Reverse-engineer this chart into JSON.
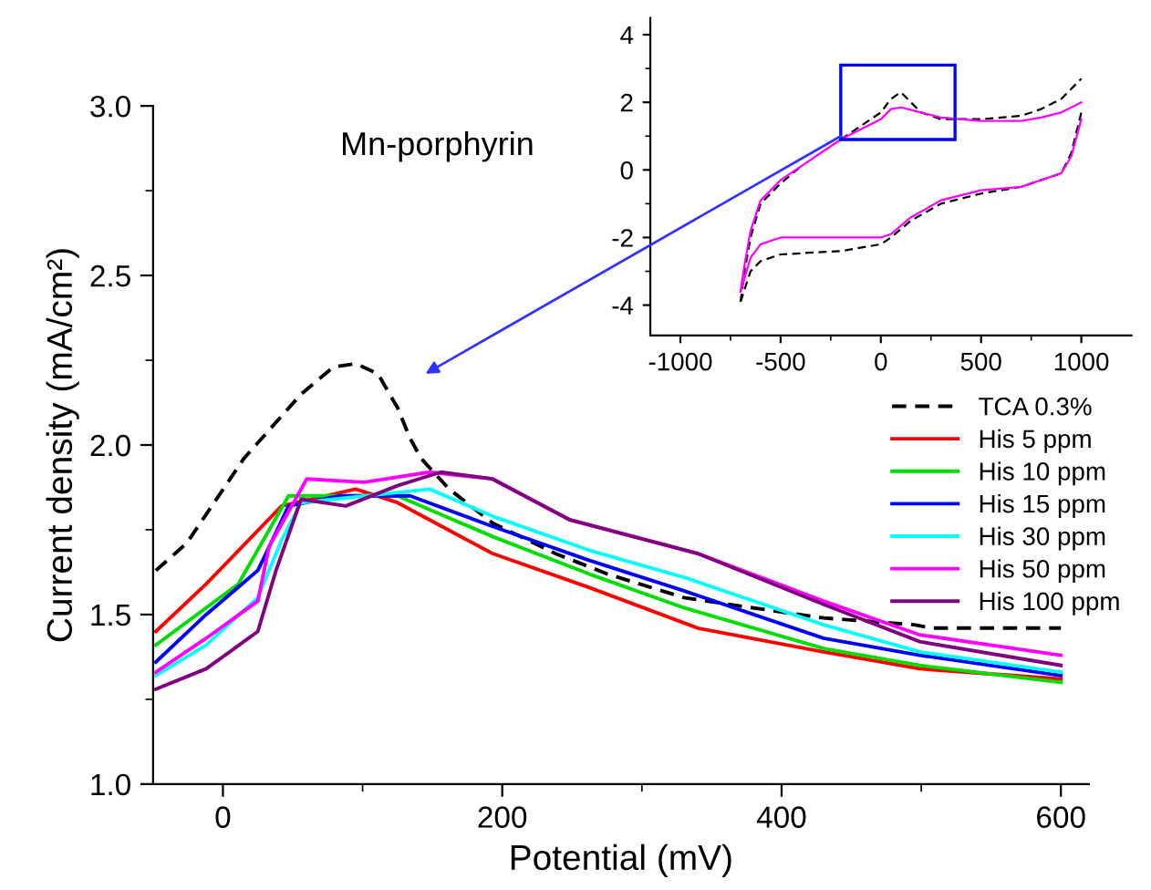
{
  "chart_data": [
    {
      "type": "line",
      "xlabel": "Potential (mV)",
      "ylabel": "Current density (mA/cm²)",
      "annotations": [
        "Mn-porphyrin"
      ],
      "xlim": [
        -50,
        620
      ],
      "ylim": [
        1.0,
        3.0
      ],
      "xticks": [
        0,
        200,
        400,
        600
      ],
      "yticks": [
        {
          "value": 1.0,
          "label": "1.0"
        },
        {
          "value": 1.5,
          "label": "1.5"
        },
        {
          "value": 2.0,
          "label": "2.0"
        },
        {
          "value": 2.5,
          "label": "2.5"
        },
        {
          "value": 3.0,
          "label": "3.0"
        }
      ],
      "legend": "right",
      "series": [
        {
          "name": "TCA 0.3%",
          "color": "#000000",
          "line_style": "dashed",
          "x": [
            -48,
            -26,
            15,
            56,
            79,
            95,
            111,
            125,
            134,
            142,
            162,
            193,
            238,
            275,
            330,
            362,
            430,
            495,
            508,
            600
          ],
          "values": [
            1.63,
            1.71,
            1.96,
            2.15,
            2.23,
            2.24,
            2.21,
            2.11,
            2.02,
            1.96,
            1.87,
            1.77,
            1.68,
            1.62,
            1.55,
            1.53,
            1.49,
            1.47,
            1.46,
            1.46
          ]
        },
        {
          "name": "His 5 ppm",
          "color": "#ff0000",
          "x": [
            -48,
            -12,
            42,
            95,
            125,
            193,
            262,
            340,
            430,
            499,
            600
          ],
          "values": [
            1.45,
            1.59,
            1.82,
            1.87,
            1.83,
            1.68,
            1.58,
            1.46,
            1.39,
            1.34,
            1.31
          ]
        },
        {
          "name": "His 10 ppm",
          "color": "#00dd00",
          "x": [
            -48,
            11,
            47,
            125,
            193,
            262,
            330,
            430,
            499,
            600
          ],
          "values": [
            1.41,
            1.59,
            1.85,
            1.85,
            1.73,
            1.62,
            1.52,
            1.4,
            1.35,
            1.3
          ]
        },
        {
          "name": "His 15 ppm",
          "color": "#0000ff",
          "x": [
            -48,
            -12,
            25,
            47,
            84,
            134,
            193,
            262,
            330,
            430,
            499,
            600
          ],
          "values": [
            1.36,
            1.5,
            1.63,
            1.82,
            1.85,
            1.85,
            1.76,
            1.66,
            1.57,
            1.43,
            1.38,
            1.32
          ]
        },
        {
          "name": "His 30 ppm",
          "color": "#00ffff",
          "x": [
            -48,
            -12,
            25,
            42,
            56,
            148,
            193,
            262,
            330,
            430,
            499,
            600
          ],
          "values": [
            1.32,
            1.41,
            1.55,
            1.72,
            1.83,
            1.87,
            1.79,
            1.69,
            1.61,
            1.47,
            1.39,
            1.33
          ]
        },
        {
          "name": "His 50 ppm",
          "color": "#ff00ff",
          "x": [
            -48,
            -12,
            25,
            33,
            60,
            101,
            148,
            193,
            248,
            340,
            430,
            499,
            600
          ],
          "values": [
            1.33,
            1.43,
            1.54,
            1.7,
            1.9,
            1.89,
            1.92,
            1.9,
            1.78,
            1.68,
            1.54,
            1.44,
            1.38
          ]
        },
        {
          "name": "His 100 ppm",
          "color": "#800080",
          "x": [
            -48,
            -12,
            25,
            38,
            56,
            88,
            125,
            156,
            193,
            248,
            340,
            430,
            499,
            600
          ],
          "values": [
            1.28,
            1.34,
            1.45,
            1.63,
            1.84,
            1.82,
            1.88,
            1.92,
            1.9,
            1.78,
            1.68,
            1.53,
            1.42,
            1.35
          ]
        }
      ]
    },
    {
      "type": "line",
      "xlim": [
        -1150,
        1250
      ],
      "ylim": [
        -4.9,
        4.5
      ],
      "xticks": [
        -1000,
        -500,
        0,
        500,
        1000
      ],
      "yticks": [
        -4,
        -2,
        0,
        2,
        4
      ],
      "series": [
        {
          "color": "#000000",
          "line_style": "dashed",
          "x": [
            -700,
            -680,
            -650,
            -600,
            -500,
            -400,
            -300,
            -200,
            -100,
            0,
            50,
            100,
            150,
            200,
            300,
            500,
            700,
            800,
            900,
            1000
          ],
          "values": [
            -3.9,
            -3.0,
            -2.0,
            -1.0,
            -0.4,
            0.1,
            null,
            0.9,
            1.3,
            1.7,
            2.1,
            2.3,
            2.0,
            1.7,
            1.5,
            1.5,
            1.6,
            1.8,
            2.1,
            2.7
          ]
        },
        {
          "color": "#000000",
          "line_style": "dashed",
          "x": [
            -700,
            -650,
            -600,
            -500,
            -200,
            0,
            50,
            150,
            300,
            500,
            700,
            900,
            950,
            1000
          ],
          "values": [
            -3.9,
            -3.0,
            -2.7,
            -2.5,
            -2.4,
            -2.2,
            -2.0,
            -1.5,
            -1.0,
            -0.7,
            -0.5,
            -0.1,
            0.5,
            1.7
          ]
        },
        {
          "color": "#ff00ff",
          "x": [
            -700,
            -680,
            -650,
            -600,
            -500,
            -400,
            -300,
            -200,
            -100,
            0,
            50,
            100,
            200,
            300,
            500,
            700,
            800,
            900,
            1000
          ],
          "values": [
            -3.6,
            -2.8,
            -1.8,
            -0.9,
            -0.3,
            0.1,
            0.5,
            0.9,
            1.2,
            1.5,
            1.8,
            1.85,
            1.7,
            1.55,
            1.45,
            1.45,
            1.55,
            1.7,
            2.0
          ]
        },
        {
          "color": "#ff00ff",
          "x": [
            -700,
            -650,
            -600,
            -500,
            -200,
            0,
            50,
            150,
            300,
            500,
            700,
            900,
            950,
            1000
          ],
          "values": [
            -3.6,
            -2.6,
            -2.2,
            -2.0,
            -2.0,
            -2.0,
            -1.9,
            -1.4,
            -0.9,
            -0.6,
            -0.5,
            -0.1,
            0.4,
            1.5
          ]
        }
      ]
    }
  ]
}
